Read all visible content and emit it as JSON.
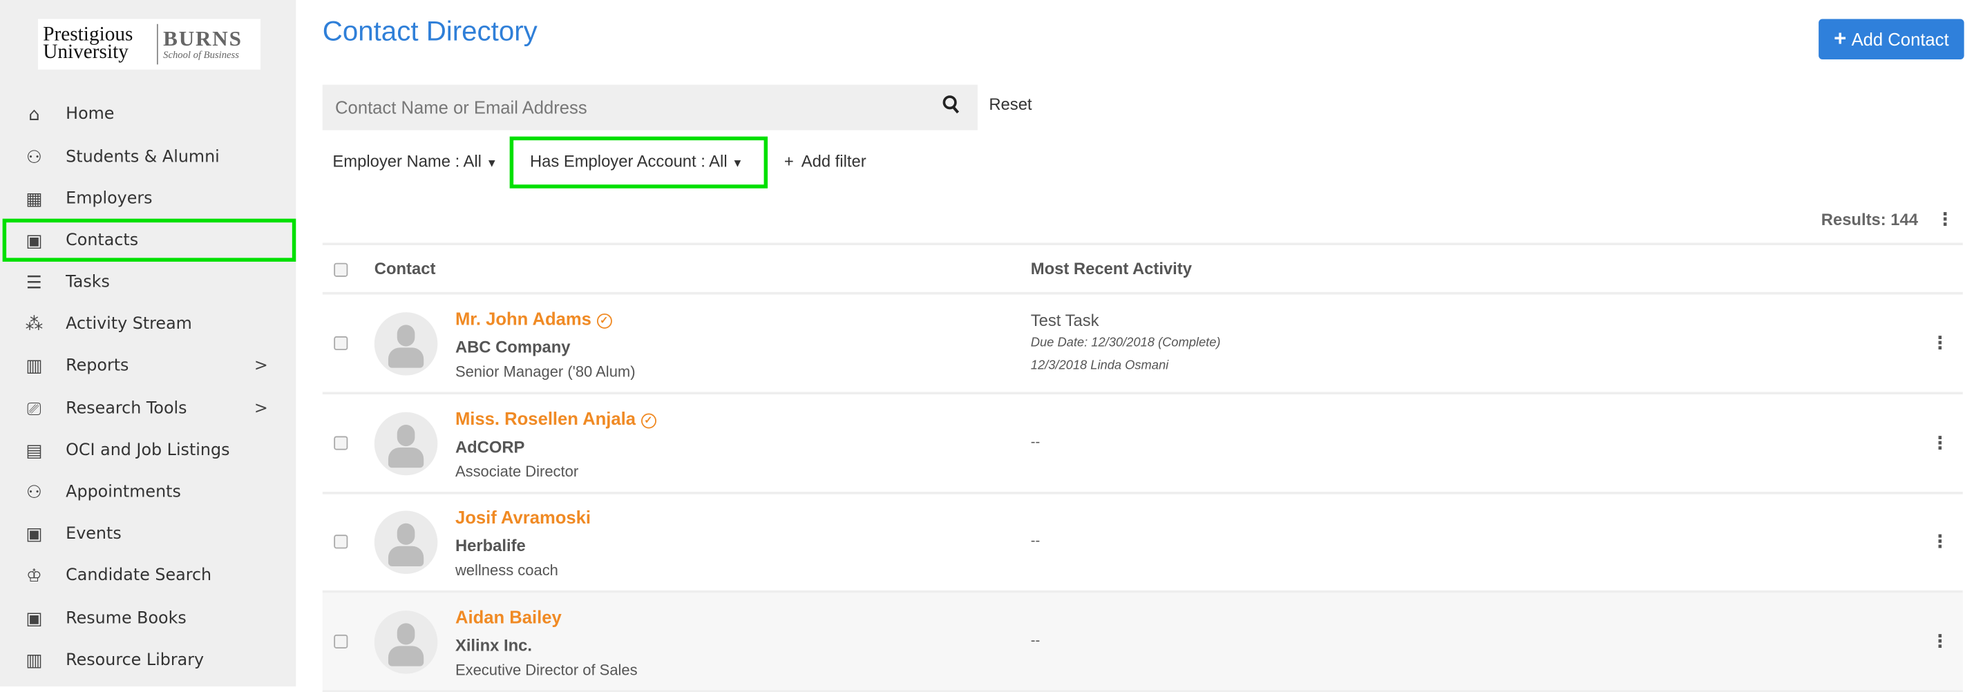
{
  "sidebar": {
    "logo": {
      "line1": "Prestigious",
      "line2": "University",
      "brand": "BURNS",
      "sub": "School of Business"
    },
    "items": [
      {
        "label": "Home",
        "icon": "home-icon"
      },
      {
        "label": "Students & Alumni",
        "icon": "people-icon"
      },
      {
        "label": "Employers",
        "icon": "building-icon"
      },
      {
        "label": "Contacts",
        "icon": "contact-card-icon",
        "active": true
      },
      {
        "label": "Tasks",
        "icon": "checklist-icon"
      },
      {
        "label": "Activity Stream",
        "icon": "network-icon"
      },
      {
        "label": "Reports",
        "icon": "bar-chart-icon",
        "submenu": true
      },
      {
        "label": "Research Tools",
        "icon": "research-icon",
        "submenu": true
      },
      {
        "label": "OCI and Job Listings",
        "icon": "briefcase-icon"
      },
      {
        "label": "Appointments",
        "icon": "appointments-icon"
      },
      {
        "label": "Events",
        "icon": "calendar-star-icon"
      },
      {
        "label": "Candidate Search",
        "icon": "graduate-icon"
      },
      {
        "label": "Resume Books",
        "icon": "resume-book-icon"
      },
      {
        "label": "Resource Library",
        "icon": "library-icon"
      }
    ]
  },
  "header": {
    "title": "Contact Directory",
    "add_button": "Add Contact"
  },
  "search": {
    "placeholder": "Contact Name or Email Address",
    "reset": "Reset"
  },
  "filters": {
    "employer_name": "Employer Name : All",
    "has_employer_account": "Has Employer Account : All",
    "add_filter": "Add filter"
  },
  "results": "Results: 144",
  "table": {
    "columns": [
      "Contact",
      "Most Recent Activity"
    ],
    "rows": [
      {
        "name": "Mr. John Adams",
        "verified": true,
        "company": "ABC Company",
        "title": "Senior Manager ('80 Alum)",
        "activity": {
          "title": "Test Task",
          "due": "Due Date:  12/30/2018  (Complete)",
          "meta": "12/3/2018  Linda Osmani"
        }
      },
      {
        "name": "Miss. Rosellen Anjala",
        "verified": true,
        "company": "AdCORP",
        "title": "Associate Director",
        "activity": {
          "empty": "--"
        }
      },
      {
        "name": "Josif Avramoski",
        "verified": false,
        "company": "Herbalife",
        "title": "wellness coach",
        "activity": {
          "empty": "--"
        }
      },
      {
        "name": "Aidan Bailey",
        "verified": false,
        "company": "Xilinx Inc.",
        "title": "Executive Director of Sales",
        "activity": {
          "empty": "--"
        }
      }
    ]
  },
  "colors": {
    "accent": "#2f80db",
    "name": "#f08a24",
    "highlight": "#00e000",
    "sidebar_bg": "#efefef"
  }
}
